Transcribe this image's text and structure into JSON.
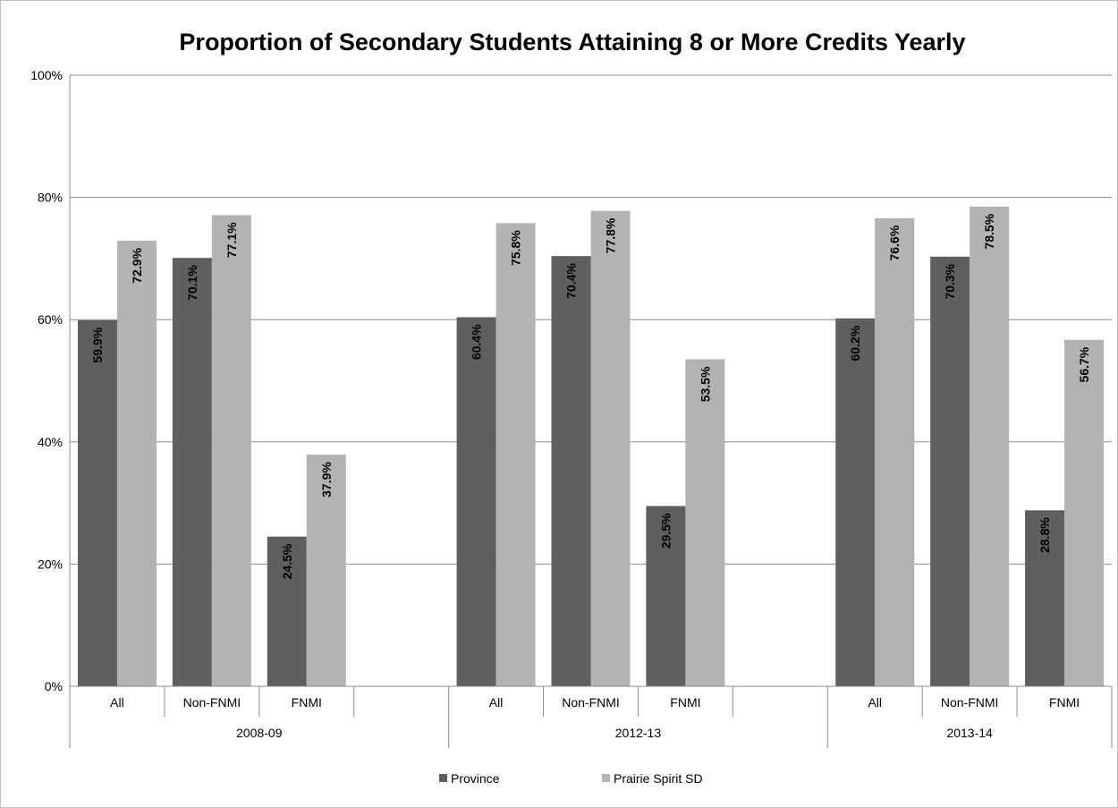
{
  "chart_data": {
    "type": "bar",
    "title": "Proportion of Secondary Students Attaining 8 or More Credits Yearly",
    "xlabel": "",
    "ylabel": "",
    "ylim": [
      0,
      100
    ],
    "yticks": [
      "0%",
      "20%",
      "40%",
      "60%",
      "80%",
      "100%"
    ],
    "grid": true,
    "legend_position": "bottom",
    "groups": [
      {
        "label": "2008-09",
        "categories": [
          {
            "label": "All",
            "values": [
              59.9,
              72.9
            ],
            "value_labels": [
              "59.9%",
              "72.9%"
            ]
          },
          {
            "label": "Non-FNMI",
            "values": [
              70.1,
              77.1
            ],
            "value_labels": [
              "70.1%",
              "77.1%"
            ]
          },
          {
            "label": "FNMI",
            "values": [
              24.5,
              37.9
            ],
            "value_labels": [
              "24.5%",
              "37.9%"
            ]
          },
          {
            "label": "",
            "values": [],
            "value_labels": []
          }
        ]
      },
      {
        "label": "2012-13",
        "categories": [
          {
            "label": "All",
            "values": [
              60.4,
              75.8
            ],
            "value_labels": [
              "60.4%",
              "75.8%"
            ]
          },
          {
            "label": "Non-FNMI",
            "values": [
              70.4,
              77.8
            ],
            "value_labels": [
              "70.4%",
              "77.8%"
            ]
          },
          {
            "label": "FNMI",
            "values": [
              29.5,
              53.5
            ],
            "value_labels": [
              "29.5%",
              "53.5%"
            ]
          },
          {
            "label": "",
            "values": [],
            "value_labels": []
          }
        ]
      },
      {
        "label": "2013-14",
        "categories": [
          {
            "label": "All",
            "values": [
              60.2,
              76.6
            ],
            "value_labels": [
              "60.2%",
              "76.6%"
            ]
          },
          {
            "label": "Non-FNMI",
            "values": [
              70.3,
              78.5
            ],
            "value_labels": [
              "70.3%",
              "78.5%"
            ]
          },
          {
            "label": "FNMI",
            "values": [
              28.8,
              56.7
            ],
            "value_labels": [
              "28.8%",
              "56.7%"
            ]
          }
        ]
      }
    ],
    "series": [
      {
        "name": "Province",
        "color": "#5f5f5f"
      },
      {
        "name": "Prairie Spirit SD",
        "color": "#b3b3b3"
      }
    ]
  }
}
